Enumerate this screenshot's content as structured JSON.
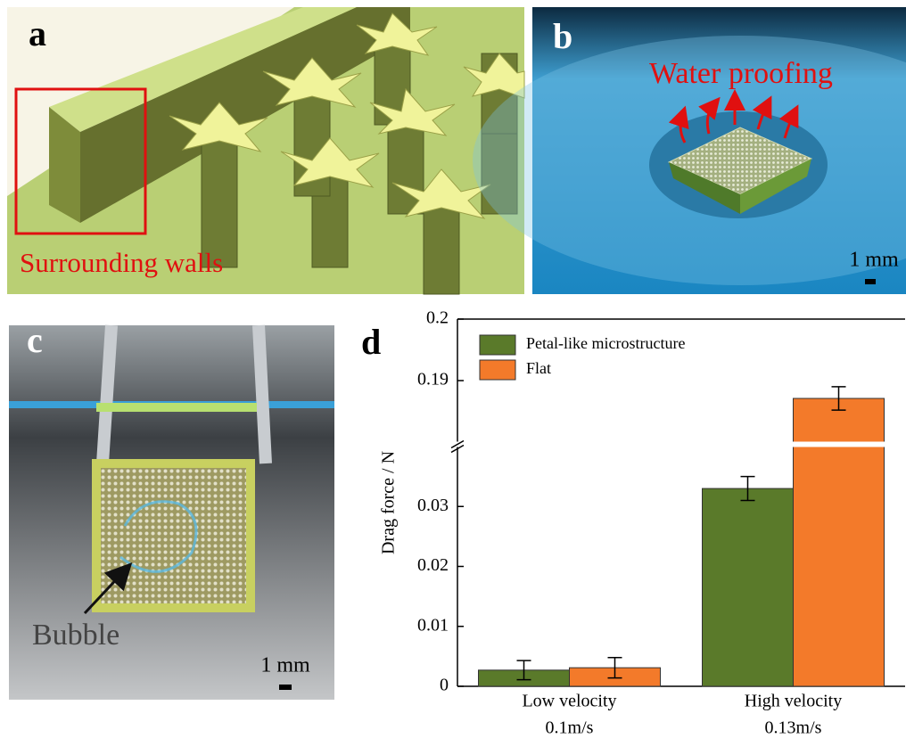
{
  "panels": {
    "a": {
      "label": "a",
      "annotation": "Surrounding walls"
    },
    "b": {
      "label": "b",
      "annotation": "Water proofing",
      "scale": "1 mm"
    },
    "c": {
      "label": "c",
      "annotation": "Bubble",
      "scale": "1 mm"
    },
    "d": {
      "label": "d"
    }
  },
  "chart_data": {
    "type": "bar",
    "ylabel": "Drag force / N",
    "categories": [
      [
        "Low velocity",
        "0.1m/s"
      ],
      [
        "High velocity",
        "0.13m/s"
      ]
    ],
    "series": [
      {
        "name": "Petal-like microstructure",
        "color": "#5a7a2a",
        "values": [
          0.0027,
          0.033
        ],
        "errors": [
          0.0016,
          0.002
        ]
      },
      {
        "name": "Flat",
        "color": "#f37a2a",
        "values": [
          0.0031,
          0.1871
        ],
        "errors": [
          0.0017,
          0.0019
        ]
      }
    ],
    "ylim": [
      0,
      0.2
    ],
    "axis_break": [
      0.04,
      0.18
    ],
    "yticks": [
      0,
      0.01,
      0.02,
      0.03,
      0.19,
      0.2
    ],
    "legend": "upper left"
  }
}
